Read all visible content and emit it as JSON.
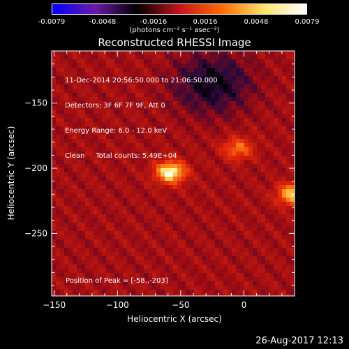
{
  "colorbar": {
    "ticks": [
      "-0.0079",
      "-0.0048",
      "-0.0016",
      "0.0016",
      "0.0048",
      "0.0079"
    ],
    "units": "(photons cm⁻² s⁻¹ asec⁻²)",
    "colors": [
      "#0000ff",
      "#6a1aa8",
      "#000000",
      "#c4141c",
      "#ff6a00",
      "#ffe46a",
      "#ffffff"
    ]
  },
  "chart_data": {
    "type": "heatmap",
    "title": "Reconstructed RHESSI Image",
    "xlabel": "Heliocentric X (arcsec)",
    "ylabel": "Heliocentric Y (arcsec)",
    "xlim": [
      -152,
      40
    ],
    "ylim": [
      -298,
      -110
    ],
    "xticks": [
      -150,
      -100,
      -50,
      0
    ],
    "xtick_labels": [
      "−150",
      "−100",
      "−50",
      "0"
    ],
    "yticks": [
      -150,
      -200,
      -250
    ],
    "ytick_labels": [
      "−150",
      "−200",
      "−250"
    ],
    "annotations": [
      "11-Dec-2014 20:56:50.000 to 21:06:50.000",
      "Detectors: 3F 6F 7F 9F, Att 0",
      "Energy Range: 6.0 - 12.0 keV",
      "Clean     Total counts: 5.49E+04"
    ],
    "peak_label": "Position of Peak = [-58.,-203]",
    "peak": [
      -58,
      -203
    ],
    "sources": [
      {
        "x": -58,
        "y": -203,
        "intensity": 1.0
      },
      {
        "x": 38,
        "y": -220,
        "intensity": 0.8
      },
      {
        "x": -5,
        "y": -185,
        "intensity": 0.55
      }
    ]
  },
  "footer": {
    "timestamp": "26-Aug-2017 12:13"
  }
}
